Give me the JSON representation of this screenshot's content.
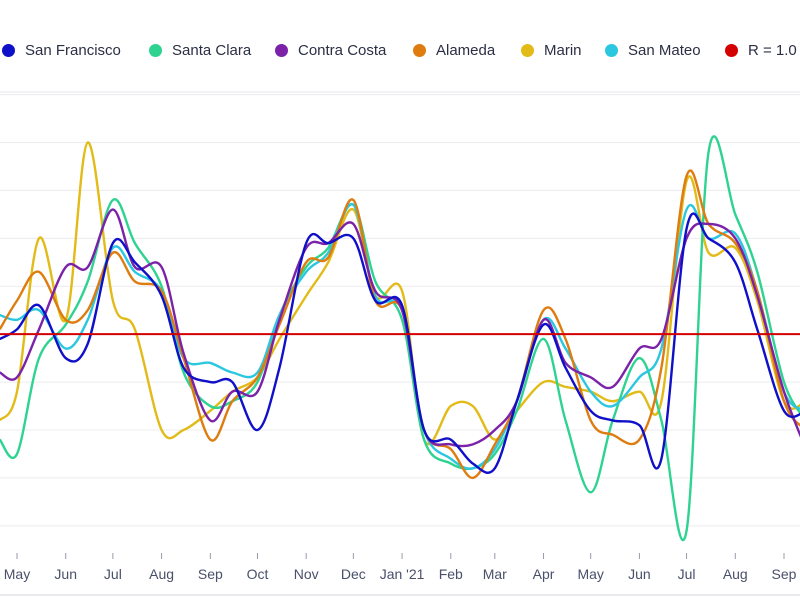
{
  "chart_data": {
    "type": "line",
    "title": "",
    "xlabel": "",
    "ylabel": "",
    "ylim": [
      0.56,
      1.52
    ],
    "grid": true,
    "legend_position": "top",
    "x_tick_labels": [
      "May",
      "Jun",
      "Jul",
      "Aug",
      "Sep",
      "Oct",
      "Nov",
      "Dec",
      "Jan '21",
      "Feb",
      "Mar",
      "Apr",
      "May",
      "Jun",
      "Jul",
      "Aug",
      "Sep"
    ],
    "x_tick_dates": [
      "2020-05-01",
      "2020-06-01",
      "2020-07-01",
      "2020-08-01",
      "2020-09-01",
      "2020-10-01",
      "2020-11-01",
      "2020-12-01",
      "2021-01-01",
      "2021-02-01",
      "2021-03-01",
      "2021-04-01",
      "2021-05-01",
      "2021-06-01",
      "2021-07-01",
      "2021-08-01",
      "2021-09-01"
    ],
    "x": [
      "2020-04-20",
      "2020-05-01",
      "2020-05-15",
      "2020-06-01",
      "2020-06-15",
      "2020-07-01",
      "2020-07-15",
      "2020-08-01",
      "2020-08-15",
      "2020-09-01",
      "2020-09-15",
      "2020-10-01",
      "2020-10-15",
      "2020-11-01",
      "2020-11-15",
      "2020-12-01",
      "2020-12-15",
      "2021-01-01",
      "2021-01-15",
      "2021-02-01",
      "2021-02-15",
      "2021-03-01",
      "2021-03-15",
      "2021-04-01",
      "2021-04-15",
      "2021-05-01",
      "2021-05-15",
      "2021-06-01",
      "2021-06-15",
      "2021-07-01",
      "2021-07-15",
      "2021-08-01",
      "2021-08-15",
      "2021-09-01",
      "2021-09-15"
    ],
    "series": [
      {
        "name": "Marin",
        "color": "#e2bb18",
        "values": [
          0.82,
          0.88,
          1.2,
          1.03,
          1.4,
          1.07,
          1.01,
          0.8,
          0.8,
          0.84,
          0.88,
          0.91,
          0.99,
          1.08,
          1.15,
          1.26,
          1.08,
          1.09,
          0.78,
          0.85,
          0.85,
          0.78,
          0.84,
          0.9,
          0.89,
          0.88,
          0.86,
          0.88,
          0.86,
          1.32,
          1.17,
          1.18,
          1.07,
          0.86,
          0.86
        ]
      },
      {
        "name": "Santa Clara",
        "color": "#2ed391",
        "values": [
          0.78,
          0.75,
          0.95,
          1.02,
          1.11,
          1.28,
          1.19,
          1.1,
          0.92,
          0.85,
          0.86,
          0.9,
          1.04,
          1.14,
          1.18,
          1.27,
          1.11,
          1.03,
          0.78,
          0.73,
          0.72,
          0.75,
          0.84,
          0.99,
          0.82,
          0.67,
          0.82,
          0.95,
          0.82,
          0.59,
          1.38,
          1.25,
          1.13,
          0.9,
          0.82
        ]
      },
      {
        "name": "San Mateo",
        "color": "#2bc7e0",
        "values": [
          1.04,
          1.03,
          1.05,
          0.97,
          1.03,
          1.18,
          1.13,
          1.09,
          0.95,
          0.94,
          0.92,
          0.92,
          1.04,
          1.13,
          1.17,
          1.27,
          1.08,
          1.05,
          0.8,
          0.74,
          0.72,
          0.76,
          0.86,
          1.03,
          0.97,
          0.88,
          0.85,
          0.91,
          0.97,
          1.26,
          1.2,
          1.21,
          1.09,
          0.88,
          0.84
        ]
      },
      {
        "name": "Alameda",
        "color": "#de7c10",
        "values": [
          1.01,
          1.07,
          1.13,
          1.03,
          1.05,
          1.17,
          1.11,
          1.09,
          0.95,
          0.78,
          0.86,
          0.91,
          1.02,
          1.15,
          1.16,
          1.28,
          1.07,
          1.05,
          0.8,
          0.76,
          0.7,
          0.77,
          0.86,
          1.05,
          0.99,
          0.82,
          0.79,
          0.78,
          0.93,
          1.33,
          1.23,
          1.19,
          1.09,
          0.86,
          0.8
        ]
      },
      {
        "name": "Contra Costa",
        "color": "#7b22a8",
        "values": [
          0.92,
          0.91,
          1.01,
          1.14,
          1.14,
          1.26,
          1.14,
          1.14,
          0.96,
          0.82,
          0.88,
          0.88,
          1.03,
          1.18,
          1.19,
          1.23,
          1.09,
          1.05,
          0.8,
          0.77,
          0.77,
          0.8,
          0.86,
          1.03,
          0.94,
          0.91,
          0.89,
          0.97,
          0.99,
          1.2,
          1.23,
          1.2,
          1.08,
          0.88,
          0.76
        ]
      },
      {
        "name": "San Francisco",
        "color": "#1010c8",
        "values": [
          0.99,
          1.01,
          1.06,
          0.95,
          0.98,
          1.19,
          1.15,
          1.08,
          0.93,
          0.9,
          0.9,
          0.8,
          0.93,
          1.19,
          1.19,
          1.2,
          1.07,
          1.06,
          0.8,
          0.78,
          0.73,
          0.72,
          0.86,
          1.02,
          0.93,
          0.84,
          0.82,
          0.81,
          0.74,
          1.22,
          1.2,
          1.15,
          1.01,
          0.84,
          0.84
        ]
      }
    ],
    "reference_line": {
      "name": "R = 1.0",
      "value": 1.0,
      "color": "#d40000"
    }
  },
  "legend": [
    {
      "label": "San Francisco",
      "color": "#1010c8"
    },
    {
      "label": "Santa Clara",
      "color": "#2ed391"
    },
    {
      "label": "Contra Costa",
      "color": "#7b22a8"
    },
    {
      "label": "Alameda",
      "color": "#de7c10"
    },
    {
      "label": "Marin",
      "color": "#e2bb18"
    },
    {
      "label": "San Mateo",
      "color": "#2bc7e0"
    },
    {
      "label": "R = 1.0",
      "color": "#d40000"
    }
  ]
}
